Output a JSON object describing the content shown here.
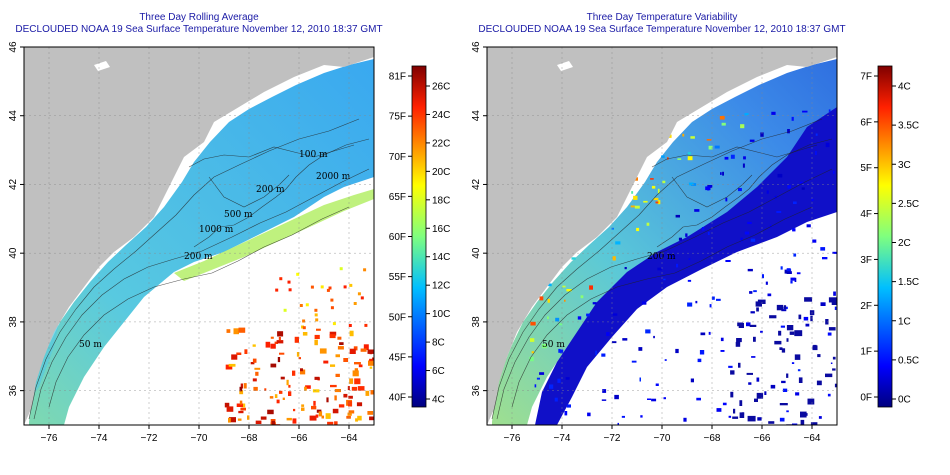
{
  "panels": [
    {
      "id": "rolling-average",
      "title_line1": "Three Day Rolling Average",
      "title_line2": "DECLOUDED NOAA 19 Sea Surface Temperature November 12, 2010 18:37 GMT",
      "colorbar_left": [
        "81F",
        "75F",
        "70F",
        "65F",
        "60F",
        "55F",
        "50F",
        "45F",
        "40F"
      ],
      "colorbar_right": [
        "26C",
        "24C",
        "22C",
        "20C",
        "18C",
        "16C",
        "14C",
        "12C",
        "10C",
        "8C",
        "6C",
        "4C"
      ],
      "contour_labels": [
        "100 m",
        "200 m",
        "500 m",
        "1000 m",
        "2000 m",
        "200 m",
        "50 m"
      ]
    },
    {
      "id": "temperature-variability",
      "title_line1": "Three Day Temperature Variability",
      "title_line2": "DECLOUDED NOAA 19 Sea Surface Temperature November 12, 2010 18:37 GMT",
      "colorbar_left": [
        "7F",
        "6F",
        "5F",
        "4F",
        "3F",
        "2F",
        "1F",
        "0F"
      ],
      "colorbar_right": [
        "4C",
        "3.5C",
        "3C",
        "2.5C",
        "2C",
        "1.5C",
        "1C",
        "0.5C",
        "0C"
      ],
      "contour_labels": [
        "200 m",
        "50 m"
      ]
    }
  ],
  "axes": {
    "x_ticks": [
      "−76",
      "−74",
      "−72",
      "−70",
      "−68",
      "−66",
      "−64"
    ],
    "y_ticks": [
      "36",
      "38",
      "40",
      "42",
      "44",
      "46"
    ],
    "lon_range": [
      -77,
      -63
    ],
    "lat_range": [
      35,
      46
    ]
  },
  "colors": {
    "land": "#c0c0c0",
    "no_data": "#ffffff",
    "title": "#1a1aa6"
  }
}
